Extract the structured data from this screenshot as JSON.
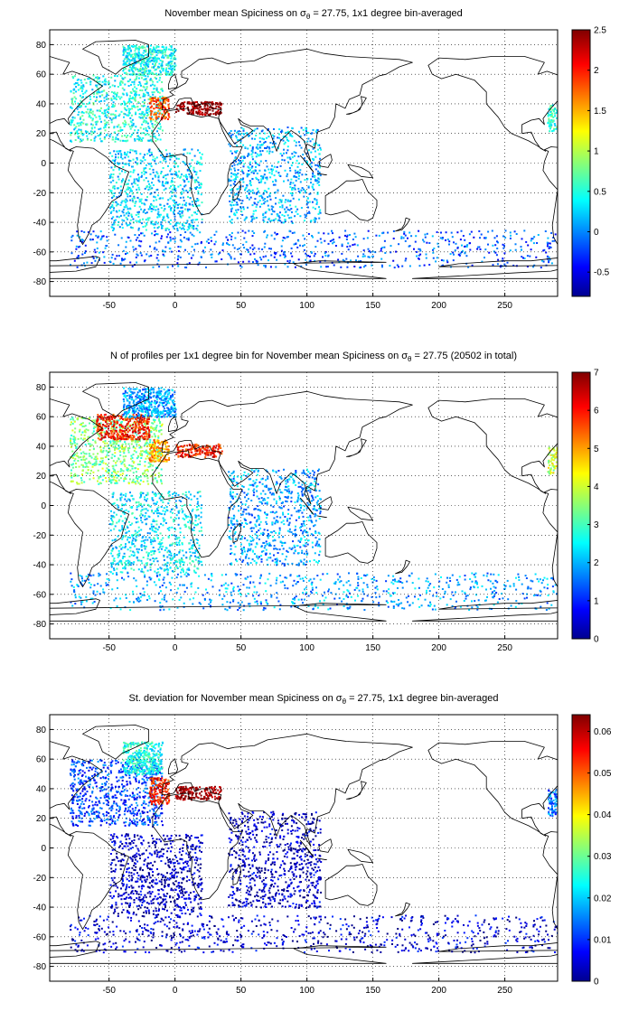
{
  "figure": {
    "panels": [
      {
        "title_main": "November mean Spiciness on",
        "title_sub": "θ",
        "title_tail": " = 27.75, 1x1 degree bin-averaged",
        "colorbar_ticks": [
          "2.5",
          "2",
          "1.5",
          "1",
          "0.5",
          "0",
          "-0.5"
        ]
      },
      {
        "title_main": "N of profiles per 1x1 degree bin for November mean Spiciness on",
        "title_sub": "θ",
        "title_tail": " = 27.75 (20502 in total)",
        "colorbar_ticks": [
          "7",
          "6",
          "5",
          "4",
          "3",
          "2",
          "1",
          "0"
        ]
      },
      {
        "title_main": "St. deviation for November mean Spiciness on",
        "title_sub": "θ",
        "title_tail": " = 27.75, 1x1 degree bin-averaged",
        "colorbar_ticks": [
          "0.06",
          "0.05",
          "0.04",
          "0.03",
          "0.02",
          "0.01",
          "0"
        ]
      }
    ]
  },
  "chart_data": [
    {
      "type": "heatmap",
      "title": "November mean Spiciness on σθ = 27.75, 1x1 degree bin-averaged",
      "xlim": [
        -95,
        290
      ],
      "ylim": [
        -90,
        90
      ],
      "xticks": [
        -50,
        0,
        50,
        100,
        150,
        200,
        250
      ],
      "yticks": [
        80,
        60,
        40,
        20,
        0,
        -20,
        -40,
        -60,
        -80
      ],
      "grid": true,
      "colorbar": {
        "min": -0.8,
        "max": 2.5,
        "ticks": [
          2.5,
          2,
          1.5,
          1,
          0.5,
          0,
          -0.5
        ]
      },
      "colormap": "jet",
      "regions": [
        {
          "lon": [
            -80,
            -10
          ],
          "lat": [
            15,
            60
          ],
          "value": 0.5
        },
        {
          "lon": [
            -20,
            -5
          ],
          "lat": [
            30,
            45
          ],
          "value": 1.8
        },
        {
          "lon": [
            0,
            35
          ],
          "lat": [
            33,
            42
          ],
          "value": 2.5
        },
        {
          "lon": [
            -50,
            20
          ],
          "lat": [
            -45,
            10
          ],
          "value": 0.3
        },
        {
          "lon": [
            40,
            110
          ],
          "lat": [
            -40,
            25
          ],
          "value": 0.2
        },
        {
          "lon": [
            -80,
            290
          ],
          "lat": [
            -70,
            -45
          ],
          "value": -0.1
        },
        {
          "lon": [
            -40,
            0
          ],
          "lat": [
            60,
            80
          ],
          "value": 0.45
        },
        {
          "lon": [
            282,
            290
          ],
          "lat": [
            22,
            40
          ],
          "value": 0.6
        }
      ]
    },
    {
      "type": "heatmap",
      "title": "N of profiles per 1x1 degree bin for November mean Spiciness on σθ = 27.75 (20502 in total)",
      "xlim": [
        -95,
        290
      ],
      "ylim": [
        -90,
        90
      ],
      "xticks": [
        -50,
        0,
        50,
        100,
        150,
        200,
        250
      ],
      "yticks": [
        80,
        60,
        40,
        20,
        0,
        -20,
        -40,
        -60,
        -80
      ],
      "grid": true,
      "colorbar": {
        "min": 0,
        "max": 7,
        "ticks": [
          7,
          6,
          5,
          4,
          3,
          2,
          1,
          0
        ]
      },
      "colormap": "jet",
      "total_profiles": 20502,
      "regions": [
        {
          "lon": [
            -80,
            -10
          ],
          "lat": [
            15,
            60
          ],
          "value": 3.5
        },
        {
          "lon": [
            -60,
            -20
          ],
          "lat": [
            45,
            62
          ],
          "value": 6
        },
        {
          "lon": [
            -20,
            -5
          ],
          "lat": [
            30,
            45
          ],
          "value": 5
        },
        {
          "lon": [
            0,
            35
          ],
          "lat": [
            33,
            42
          ],
          "value": 6
        },
        {
          "lon": [
            -50,
            20
          ],
          "lat": [
            -45,
            10
          ],
          "value": 2.5
        },
        {
          "lon": [
            40,
            110
          ],
          "lat": [
            -40,
            25
          ],
          "value": 2
        },
        {
          "lon": [
            -80,
            290
          ],
          "lat": [
            -70,
            -45
          ],
          "value": 2
        },
        {
          "lon": [
            -40,
            0
          ],
          "lat": [
            60,
            80
          ],
          "value": 2
        },
        {
          "lon": [
            282,
            290
          ],
          "lat": [
            22,
            40
          ],
          "value": 4
        }
      ]
    },
    {
      "type": "heatmap",
      "title": "St. deviation for November mean Spiciness on σθ = 27.75, 1x1 degree bin-averaged",
      "xlim": [
        -95,
        290
      ],
      "ylim": [
        -90,
        90
      ],
      "xticks": [
        -50,
        0,
        50,
        100,
        150,
        200,
        250
      ],
      "yticks": [
        80,
        60,
        40,
        20,
        0,
        -20,
        -40,
        -60,
        -80
      ],
      "grid": true,
      "colorbar": {
        "min": 0,
        "max": 0.064,
        "ticks": [
          0.06,
          0.05,
          0.04,
          0.03,
          0.02,
          0.01,
          0
        ]
      },
      "colormap": "jet",
      "regions": [
        {
          "lon": [
            -80,
            -10
          ],
          "lat": [
            15,
            60
          ],
          "value": 0.012
        },
        {
          "lon": [
            -40,
            -10
          ],
          "lat": [
            50,
            72
          ],
          "value": 0.025
        },
        {
          "lon": [
            -20,
            -5
          ],
          "lat": [
            30,
            48
          ],
          "value": 0.055
        },
        {
          "lon": [
            0,
            35
          ],
          "lat": [
            33,
            42
          ],
          "value": 0.064
        },
        {
          "lon": [
            -50,
            20
          ],
          "lat": [
            -45,
            10
          ],
          "value": 0.004
        },
        {
          "lon": [
            40,
            110
          ],
          "lat": [
            -40,
            25
          ],
          "value": 0.004
        },
        {
          "lon": [
            -80,
            290
          ],
          "lat": [
            -70,
            -45
          ],
          "value": 0.005
        },
        {
          "lon": [
            282,
            290
          ],
          "lat": [
            22,
            40
          ],
          "value": 0.015
        }
      ]
    }
  ]
}
